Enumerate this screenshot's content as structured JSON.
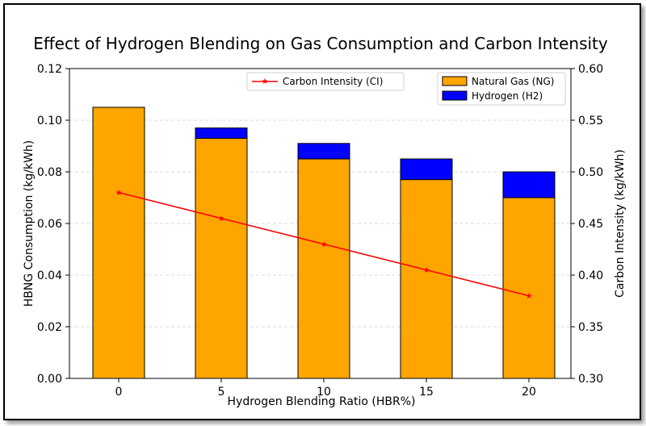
{
  "chart_data": {
    "type": "bar",
    "title": "Effect of Hydrogen Blending on Gas Consumption and Carbon Intensity",
    "xlabel": "Hydrogen Blending Ratio (HBR%)",
    "ylabel": "HBNG Consumption (kg/kWh)",
    "y2label": "Carbon Intensity (kg/kWh)",
    "categories": [
      "0",
      "5",
      "10",
      "15",
      "20"
    ],
    "ylim": [
      0,
      0.12
    ],
    "y2lim": [
      0.3,
      0.6
    ],
    "yticks": [
      "0.00",
      "0.02",
      "0.04",
      "0.06",
      "0.08",
      "0.10",
      "0.12"
    ],
    "y2ticks": [
      "0.30",
      "0.35",
      "0.40",
      "0.45",
      "0.50",
      "0.55",
      "0.60"
    ],
    "grid": true,
    "series": [
      {
        "name": "Natural Gas (NG)",
        "kind": "stacked-bar",
        "axis": "left",
        "color": "#FFA500",
        "values": [
          0.105,
          0.093,
          0.085,
          0.077,
          0.07
        ]
      },
      {
        "name": "Hydrogen (H2)",
        "kind": "stacked-bar",
        "axis": "left",
        "color": "#0000FF",
        "values": [
          0.0,
          0.004,
          0.006,
          0.008,
          0.01
        ]
      },
      {
        "name": "Carbon Intensity (CI)",
        "kind": "line",
        "axis": "right",
        "color": "#FF0000",
        "marker": "star",
        "values": [
          0.48,
          0.455,
          0.43,
          0.405,
          0.38
        ]
      }
    ],
    "legends": [
      {
        "placement": "top-center",
        "items": [
          "Carbon Intensity (CI)"
        ]
      },
      {
        "placement": "top-right",
        "items": [
          "Natural Gas (NG)",
          "Hydrogen (H2)"
        ]
      }
    ]
  }
}
